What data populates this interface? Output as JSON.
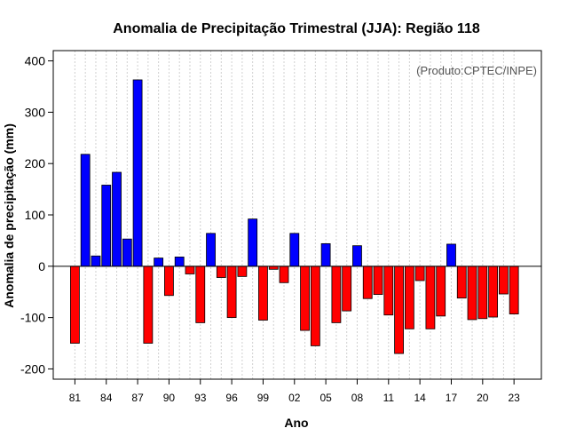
{
  "chart_data": {
    "type": "bar",
    "title": "Anomalia de Precipitação Trimestral (JJA): Região 118",
    "xlabel": "Ano",
    "ylabel": "Anomalia de precipitação (mm)",
    "credit": "(Produto:CPTEC/INPE)",
    "ylim": [
      -220,
      420
    ],
    "yticks": [
      -200,
      -100,
      0,
      100,
      200,
      300,
      400
    ],
    "xtick_labels": [
      "81",
      "84",
      "87",
      "90",
      "93",
      "96",
      "99",
      "02",
      "05",
      "08",
      "11",
      "14",
      "17",
      "20",
      "23"
    ],
    "grid": true,
    "positive_color": "#0000ff",
    "negative_color": "#ff0000",
    "categories": [
      "1981",
      "1982",
      "1983",
      "1984",
      "1985",
      "1986",
      "1987",
      "1988",
      "1989",
      "1990",
      "1991",
      "1992",
      "1993",
      "1994",
      "1995",
      "1996",
      "1997",
      "1998",
      "1999",
      "2000",
      "2001",
      "2002",
      "2003",
      "2004",
      "2005",
      "2006",
      "2007",
      "2008",
      "2009",
      "2010",
      "2011",
      "2012",
      "2013",
      "2014",
      "2015",
      "2016",
      "2017",
      "2018",
      "2019",
      "2020",
      "2021",
      "2022",
      "2023"
    ],
    "values": [
      -150,
      218,
      20,
      158,
      183,
      53,
      363,
      -150,
      16,
      -57,
      18,
      -15,
      -110,
      64,
      -22,
      -100,
      -20,
      92,
      -105,
      -6,
      -32,
      64,
      -125,
      -155,
      44,
      -110,
      -87,
      40,
      -63,
      -55,
      -95,
      -170,
      -122,
      -28,
      -122,
      -97,
      43,
      -62,
      -104,
      -102,
      -99,
      -54,
      -93
    ]
  }
}
